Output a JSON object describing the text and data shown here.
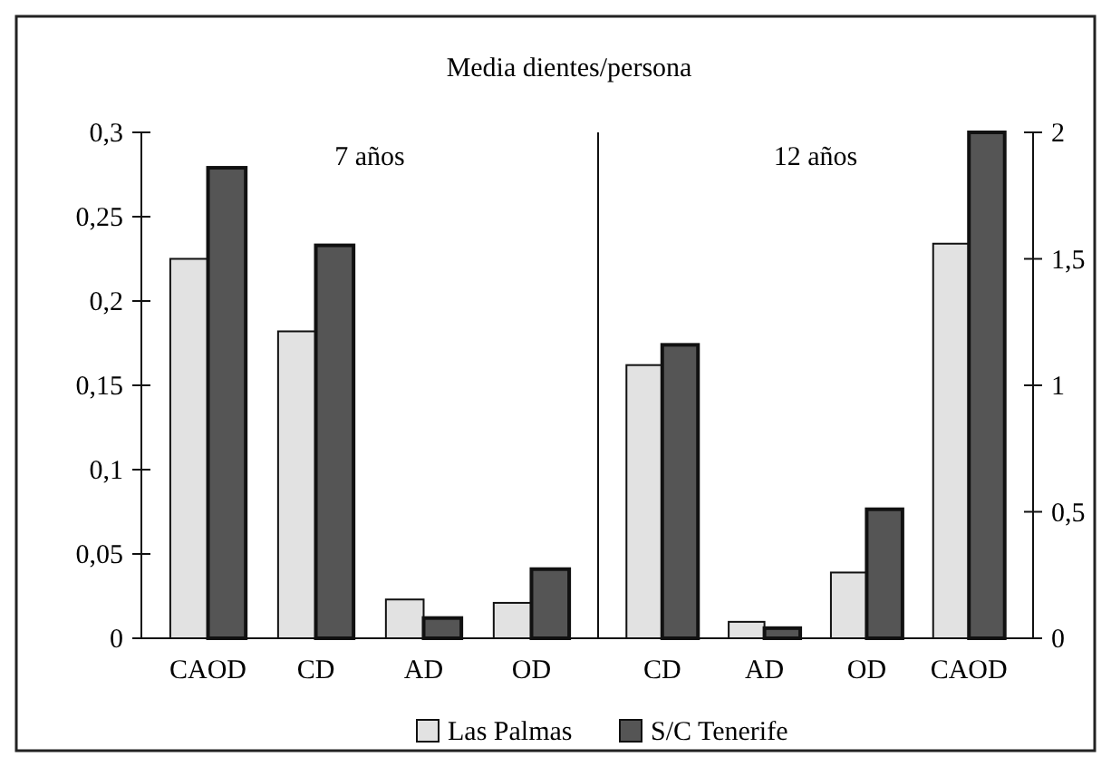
{
  "chart_data": [
    {
      "type": "bar",
      "title": "Media dientes/persona",
      "annotations": [
        "7 años"
      ],
      "categories": [
        "CAOD",
        "CD",
        "AD",
        "OD"
      ],
      "series": [
        {
          "name": "Las Palmas",
          "color": "#e2e2e2",
          "values": [
            0.225,
            0.182,
            0.023,
            0.021
          ]
        },
        {
          "name": "S/C Tenerife",
          "color": "#555555",
          "values": [
            0.279,
            0.233,
            0.012,
            0.041
          ]
        }
      ],
      "ylim": [
        0,
        0.3
      ],
      "yticks": [
        {
          "value": 0,
          "label": "0"
        },
        {
          "value": 0.05,
          "label": "0,05"
        },
        {
          "value": 0.1,
          "label": "0,1"
        },
        {
          "value": 0.15,
          "label": "0,15"
        },
        {
          "value": 0.2,
          "label": "0,2"
        },
        {
          "value": 0.25,
          "label": "0,25"
        },
        {
          "value": 0.3,
          "label": "0,3"
        }
      ],
      "legend": "bottom",
      "grid": false
    },
    {
      "type": "bar",
      "annotations": [
        "12 años"
      ],
      "categories": [
        "CD",
        "AD",
        "OD",
        "CAOD"
      ],
      "series": [
        {
          "color": "#e2e2e2",
          "axis": "y2",
          "values": [
            1.08,
            0.065,
            0.26,
            1.56
          ]
        },
        {
          "color": "#555555",
          "axis": "y2",
          "values": [
            1.16,
            0.04,
            0.51,
            2.0
          ]
        }
      ],
      "y2lim": [
        0,
        2
      ],
      "y2ticks": [
        0,
        {
          "value": 0.5,
          "label": "0,5"
        },
        1,
        {
          "value": 1.5,
          "label": "1,5"
        },
        2
      ],
      "grid": false
    }
  ]
}
